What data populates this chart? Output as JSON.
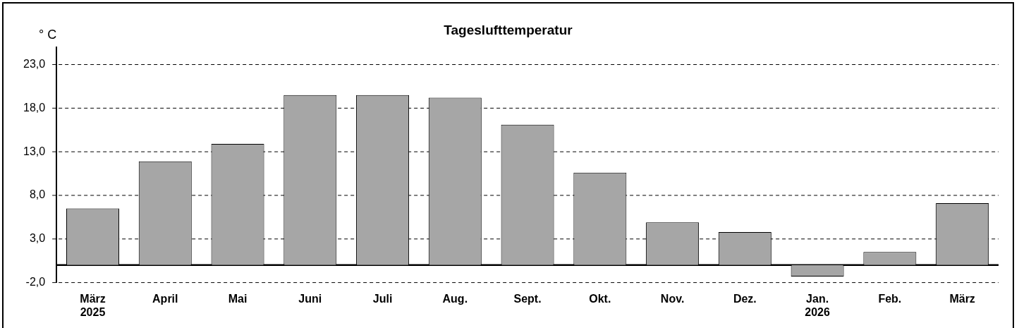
{
  "chart_data": {
    "type": "bar",
    "title": "Tageslufttemperatur",
    "ylabel": "° C",
    "categories": [
      "März\n2025",
      "April",
      "Mai",
      "Juni",
      "Juli",
      "Aug.",
      "Sept.",
      "Okt.",
      "Nov.",
      "Dez.",
      "Jan.\n2026",
      "Feb.",
      "März"
    ],
    "values": [
      6.5,
      11.9,
      13.9,
      19.5,
      19.5,
      19.2,
      16.1,
      10.6,
      4.9,
      3.8,
      -1.3,
      1.5,
      7.1
    ],
    "color": "#a6a6a6",
    "ylim": [
      -2,
      25
    ],
    "yticks": [
      {
        "value": -2,
        "label": "-2,0"
      },
      {
        "value": 3,
        "label": "3,0"
      },
      {
        "value": 8,
        "label": "8,0"
      },
      {
        "value": 13,
        "label": "13,0"
      },
      {
        "value": 18,
        "label": "18,0"
      },
      {
        "value": 23,
        "label": "23,0"
      }
    ],
    "grid": "y",
    "legend": false
  }
}
